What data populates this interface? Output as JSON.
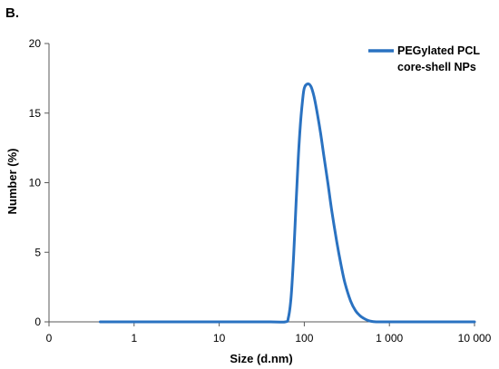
{
  "panel_label": "B.",
  "chart_data": {
    "type": "line",
    "title": "",
    "xlabel": "Size (d.nm)",
    "ylabel": "Number (%)",
    "x_scale": "log",
    "xlim": [
      0.1,
      10000
    ],
    "ylim": [
      0,
      20
    ],
    "x_ticks": [
      0.1,
      1,
      10,
      100,
      1000,
      10000
    ],
    "x_tick_labels": [
      "0",
      "1",
      "10",
      "100",
      "1 000",
      "10 000"
    ],
    "y_ticks": [
      0,
      5,
      10,
      15,
      20
    ],
    "y_tick_labels": [
      "0",
      "5",
      "10",
      "15",
      "20"
    ],
    "grid": false,
    "legend_position": "top-right",
    "series": [
      {
        "name_lines": [
          "PEGylated PCL",
          "core-shell NPs"
        ],
        "color": "#2A72C1",
        "x": [
          0.4,
          1,
          10,
          40,
          60,
          65,
          70,
          75,
          80,
          85,
          90,
          95,
          100,
          110,
          120,
          130,
          140,
          155,
          170,
          190,
          210,
          240,
          270,
          300,
          350,
          400,
          450,
          500,
          550,
          600,
          700,
          800,
          1000,
          2000,
          5000,
          10000
        ],
        "y": [
          0,
          0,
          0,
          0,
          0,
          0.3,
          1.8,
          4.8,
          8.5,
          11.8,
          14.2,
          15.8,
          16.8,
          17.1,
          16.9,
          16.2,
          15.2,
          13.6,
          11.9,
          9.9,
          8.0,
          5.8,
          4.1,
          2.8,
          1.5,
          0.8,
          0.45,
          0.25,
          0.12,
          0.05,
          0,
          0,
          0,
          0,
          0,
          0
        ]
      }
    ]
  }
}
